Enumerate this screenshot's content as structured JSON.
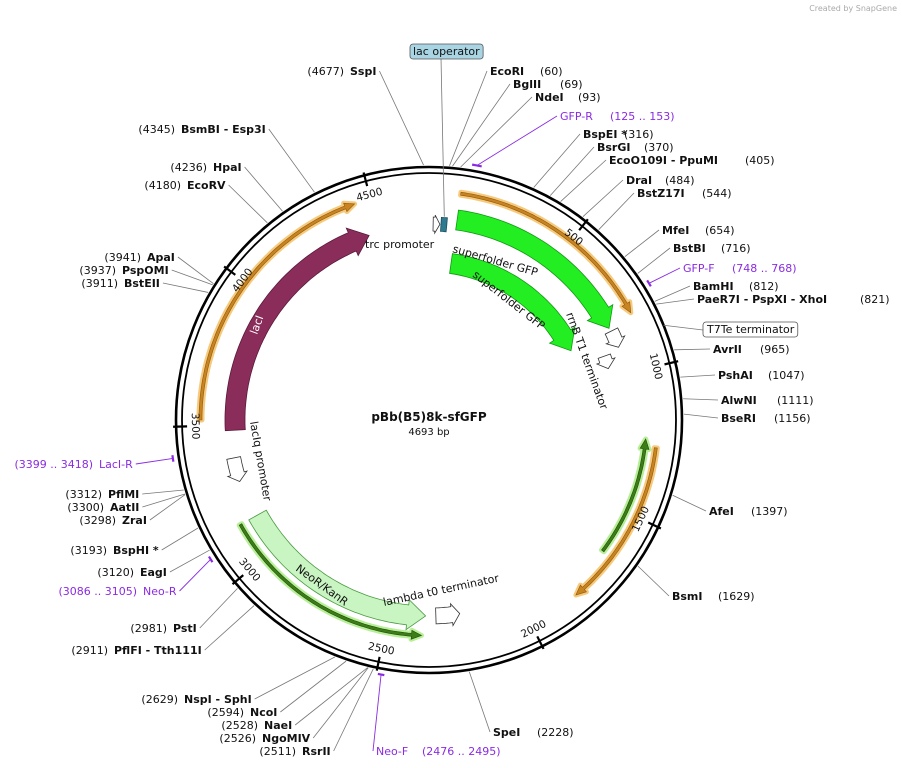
{
  "watermark": "Created by SnapGene",
  "map": {
    "title": "pBb(B5)8k-sfGFP",
    "size_bp": 4693,
    "size_label": "4693 bp",
    "ticks": [
      500,
      1000,
      1500,
      2000,
      2500,
      3000,
      3500,
      4000,
      4500
    ]
  },
  "enzymes": [
    {
      "name": "EcoRI",
      "site": "(60)",
      "bp": 60
    },
    {
      "name": "BglII",
      "site": "(69)",
      "bp": 69
    },
    {
      "name": "NdeI",
      "site": "(93)",
      "bp": 93
    },
    {
      "name": "BspEI *",
      "site": "(316)",
      "bp": 316
    },
    {
      "name": "BsrGI",
      "site": "(370)",
      "bp": 370
    },
    {
      "name": "EcoO109I  - PpuMI",
      "site": "(405)",
      "bp": 405
    },
    {
      "name": "DraI",
      "site": "(484)",
      "bp": 484
    },
    {
      "name": "BstZ17I",
      "site": "(544)",
      "bp": 544
    },
    {
      "name": "MfeI",
      "site": "(654)",
      "bp": 654
    },
    {
      "name": "BstBI",
      "site": "(716)",
      "bp": 716
    },
    {
      "name": "BamHI",
      "site": "(812)",
      "bp": 812
    },
    {
      "name": "PaeR7I - PspXI - XhoI",
      "site": "(821)",
      "bp": 821
    },
    {
      "name": "AvrII",
      "site": "(965)",
      "bp": 965
    },
    {
      "name": "PshAI",
      "site": "(1047)",
      "bp": 1047
    },
    {
      "name": "AlwNI",
      "site": "(1111)",
      "bp": 1111
    },
    {
      "name": "BseRI",
      "site": "(1156)",
      "bp": 1156
    },
    {
      "name": "AfeI",
      "site": "(1397)",
      "bp": 1397
    },
    {
      "name": "BsmI",
      "site": "(1629)",
      "bp": 1629
    },
    {
      "name": "SpeI",
      "site": "(2228)",
      "bp": 2228
    },
    {
      "name": "RsrII",
      "site": "(2511)",
      "bp": 2511
    },
    {
      "name": "NgoMIV",
      "site": "(2526)",
      "bp": 2526
    },
    {
      "name": "NaeI",
      "site": "(2528)",
      "bp": 2528
    },
    {
      "name": "NcoI",
      "site": "(2594)",
      "bp": 2594
    },
    {
      "name": "NspI  - SphI",
      "site": "(2629)",
      "bp": 2629
    },
    {
      "name": "PflFI  - Tth111I",
      "site": "(2911)",
      "bp": 2911
    },
    {
      "name": "PstI",
      "site": "(2981)",
      "bp": 2981
    },
    {
      "name": "EagI",
      "site": "(3120)",
      "bp": 3120
    },
    {
      "name": "BspHI *",
      "site": "(3193)",
      "bp": 3193
    },
    {
      "name": "ZraI",
      "site": "(3298)",
      "bp": 3298
    },
    {
      "name": "AatII",
      "site": "(3300)",
      "bp": 3300
    },
    {
      "name": "PflMI",
      "site": "(3312)",
      "bp": 3312
    },
    {
      "name": "BstEII",
      "site": "(3911)",
      "bp": 3911
    },
    {
      "name": "PspOMI",
      "site": "(3937)",
      "bp": 3937
    },
    {
      "name": "ApaI",
      "site": "(3941)",
      "bp": 3941
    },
    {
      "name": "EcoRV",
      "site": "(4180)",
      "bp": 4180
    },
    {
      "name": "HpaI",
      "site": "(4236)",
      "bp": 4236
    },
    {
      "name": "BsmBI  - Esp3I",
      "site": "(4345)",
      "bp": 4345
    },
    {
      "name": "SspI",
      "site": "(4677)",
      "bp": 4677
    }
  ],
  "primers": [
    {
      "name": "GFP-R",
      "range": "(125 .. 153)",
      "start": 125,
      "end": 153
    },
    {
      "name": "GFP-F",
      "range": "(748 .. 768)",
      "start": 748,
      "end": 768
    },
    {
      "name": "Neo-F",
      "range": "(2476 .. 2495)",
      "start": 2476,
      "end": 2495
    },
    {
      "name": "Neo-R",
      "range": "(3086 .. 3105)",
      "start": 3086,
      "end": 3105
    },
    {
      "name": "LacI-R",
      "range": "(3399 .. 3418)",
      "start": 3399,
      "end": 3418
    }
  ],
  "features": [
    {
      "label": "lac operator"
    },
    {
      "label": "trc promoter"
    },
    {
      "label": "superfolder GFP"
    },
    {
      "label": "superfolder GFP"
    },
    {
      "label": "rrnB T1 terminator"
    },
    {
      "label": "T7Te terminator"
    },
    {
      "label": "lacI"
    },
    {
      "label": "lacIq promoter"
    },
    {
      "label": "NeoR/KanR"
    },
    {
      "label": "lambda t0 terminator"
    }
  ]
}
